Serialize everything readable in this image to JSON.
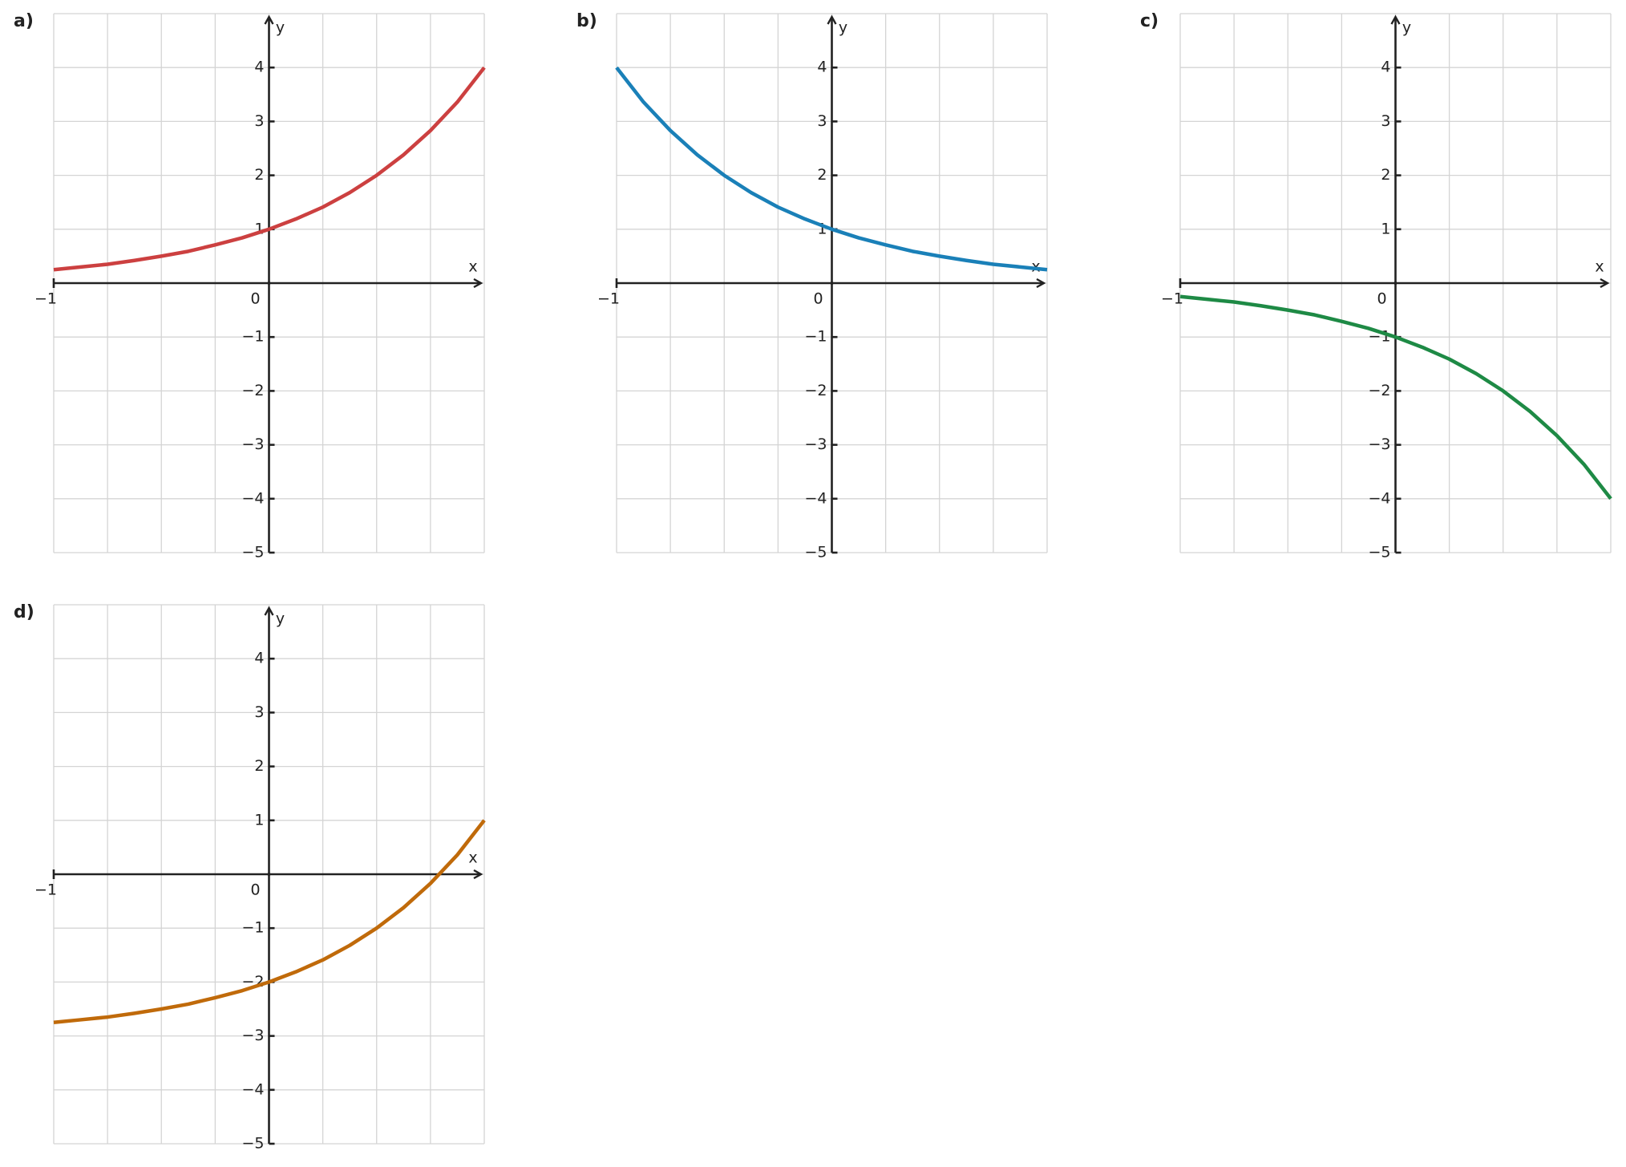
{
  "chart_data": [
    {
      "type": "line",
      "title": "a)",
      "x_label": "x",
      "y_label": "y",
      "color": "#cc4040",
      "x": [
        -1,
        -0.875,
        -0.75,
        -0.625,
        -0.5,
        -0.375,
        -0.25,
        -0.125,
        0,
        0.125,
        0.25,
        0.375,
        0.5,
        0.625,
        0.75,
        0.875,
        1
      ],
      "values": [
        0.25,
        0.3,
        0.35,
        0.42,
        0.5,
        0.59,
        0.71,
        0.84,
        1,
        1.19,
        1.41,
        1.68,
        2,
        2.38,
        2.83,
        3.36,
        4
      ],
      "xlim": [
        -1,
        1
      ],
      "ylim": [
        -5,
        5
      ],
      "xticks": [
        {
          "value": -1,
          "label": "−1"
        },
        0
      ],
      "yticks": [
        {
          "value": -5,
          "label": "−5"
        },
        {
          "value": -4,
          "label": "−4"
        },
        {
          "value": -3,
          "label": "−3"
        },
        {
          "value": -2,
          "label": "−2"
        },
        {
          "value": -1,
          "label": "−1"
        },
        1,
        2,
        3,
        4
      ],
      "xgrid": [
        -1,
        -0.75,
        -0.5,
        -0.25,
        0,
        0.25,
        0.5,
        0.75,
        1
      ],
      "ygrid": [
        -5,
        -4,
        -3,
        -2,
        -1,
        0,
        1,
        2,
        3,
        4,
        5
      ]
    },
    {
      "type": "line",
      "title": "b)",
      "x_label": "x",
      "y_label": "y",
      "color": "#1a80b8",
      "x": [
        -1,
        -0.875,
        -0.75,
        -0.625,
        -0.5,
        -0.375,
        -0.25,
        -0.125,
        0,
        0.125,
        0.25,
        0.375,
        0.5,
        0.625,
        0.75,
        0.875,
        1
      ],
      "values": [
        4,
        3.36,
        2.83,
        2.38,
        2,
        1.68,
        1.41,
        1.19,
        1,
        0.84,
        0.71,
        0.59,
        0.5,
        0.42,
        0.35,
        0.3,
        0.25
      ],
      "xlim": [
        -1,
        1
      ],
      "ylim": [
        -5,
        5
      ],
      "xticks": [
        {
          "value": -1,
          "label": "−1"
        },
        0
      ],
      "yticks": [
        {
          "value": -5,
          "label": "−5"
        },
        {
          "value": -4,
          "label": "−4"
        },
        {
          "value": -3,
          "label": "−3"
        },
        {
          "value": -2,
          "label": "−2"
        },
        {
          "value": -1,
          "label": "−1"
        },
        1,
        2,
        3,
        4
      ],
      "xgrid": [
        -1,
        -0.75,
        -0.5,
        -0.25,
        0,
        0.25,
        0.5,
        0.75,
        1
      ],
      "ygrid": [
        -5,
        -4,
        -3,
        -2,
        -1,
        0,
        1,
        2,
        3,
        4,
        5
      ]
    },
    {
      "type": "line",
      "title": "c)",
      "x_label": "x",
      "y_label": "y",
      "color": "#1e8a45",
      "x": [
        -1,
        -0.875,
        -0.75,
        -0.625,
        -0.5,
        -0.375,
        -0.25,
        -0.125,
        0,
        0.125,
        0.25,
        0.375,
        0.5,
        0.625,
        0.75,
        0.875,
        1
      ],
      "values": [
        -0.25,
        -0.3,
        -0.35,
        -0.42,
        -0.5,
        -0.59,
        -0.71,
        -0.84,
        -1,
        -1.19,
        -1.41,
        -1.68,
        -2,
        -2.38,
        -2.83,
        -3.36,
        -4
      ],
      "xlim": [
        -1,
        1
      ],
      "ylim": [
        -5,
        5
      ],
      "xticks": [
        {
          "value": -1,
          "label": "−1"
        },
        0
      ],
      "yticks": [
        {
          "value": -5,
          "label": "−5"
        },
        {
          "value": -4,
          "label": "−4"
        },
        {
          "value": -3,
          "label": "−3"
        },
        {
          "value": -2,
          "label": "−2"
        },
        {
          "value": -1,
          "label": "−1"
        },
        1,
        2,
        3,
        4
      ],
      "xgrid": [
        -1,
        -0.75,
        -0.5,
        -0.25,
        0,
        0.25,
        0.5,
        0.75,
        1
      ],
      "ygrid": [
        -5,
        -4,
        -3,
        -2,
        -1,
        0,
        1,
        2,
        3,
        4,
        5
      ]
    },
    {
      "type": "line",
      "title": "d)",
      "x_label": "x",
      "y_label": "y",
      "color": "#c06a0a",
      "x": [
        -1,
        -0.875,
        -0.75,
        -0.625,
        -0.5,
        -0.375,
        -0.25,
        -0.125,
        0,
        0.125,
        0.25,
        0.375,
        0.5,
        0.625,
        0.75,
        0.875,
        1
      ],
      "values": [
        -2.75,
        -2.7,
        -2.65,
        -2.58,
        -2.5,
        -2.41,
        -2.29,
        -2.16,
        -2,
        -1.81,
        -1.59,
        -1.32,
        -1,
        -0.62,
        -0.17,
        0.36,
        1
      ],
      "xlim": [
        -1,
        1
      ],
      "ylim": [
        -5,
        5
      ],
      "xticks": [
        {
          "value": -1,
          "label": "−1"
        },
        0
      ],
      "yticks": [
        {
          "value": -5,
          "label": "−5"
        },
        {
          "value": -4,
          "label": "−4"
        },
        {
          "value": -3,
          "label": "−3"
        },
        {
          "value": -2,
          "label": "−2"
        },
        {
          "value": -1,
          "label": "−1"
        },
        1,
        2,
        3,
        4
      ],
      "xgrid": [
        -1,
        -0.75,
        -0.5,
        -0.25,
        0,
        0.25,
        0.5,
        0.75,
        1
      ],
      "ygrid": [
        -5,
        -4,
        -3,
        -2,
        -1,
        0,
        1,
        2,
        3,
        4,
        5
      ]
    }
  ]
}
